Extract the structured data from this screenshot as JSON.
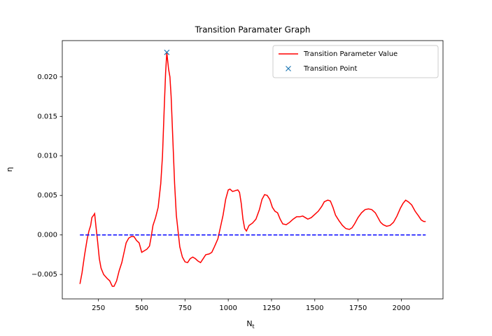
{
  "chart_data": {
    "type": "line",
    "title": "Transition Paramater Graph",
    "xlabel": "N",
    "xlabel_subscript": "t",
    "ylabel": "η",
    "xlim": [
      41,
      2241
    ],
    "ylim": [
      -0.00809,
      0.02459
    ],
    "xticks": [
      250,
      500,
      750,
      1000,
      1250,
      1500,
      1750,
      2000
    ],
    "yticks": [
      {
        "value": -0.005,
        "label": "−0.005"
      },
      {
        "value": 0,
        "label": "0.000"
      },
      {
        "value": 0.005,
        "label": "0.005"
      },
      {
        "value": 0.01,
        "label": "0.010"
      },
      {
        "value": 0.015,
        "label": "0.015"
      },
      {
        "value": 0.02,
        "label": "0.020"
      }
    ],
    "legend_loc": "upper right",
    "series": [
      {
        "name": "Transition Parameter Value",
        "color": "#ff0000",
        "linestyle": "solid",
        "x": [
          143,
          155,
          170,
          185,
          195,
          205,
          212,
          222,
          228,
          235,
          245,
          255,
          265,
          280,
          300,
          315,
          330,
          340,
          355,
          370,
          385,
          400,
          410,
          425,
          440,
          455,
          470,
          485,
          500,
          515,
          530,
          545,
          555,
          565,
          580,
          595,
          610,
          620,
          630,
          638,
          645,
          655,
          663,
          670,
          680,
          690,
          700,
          710,
          720,
          735,
          750,
          765,
          780,
          795,
          810,
          825,
          840,
          855,
          870,
          890,
          905,
          920,
          940,
          955,
          970,
          985,
          1000,
          1010,
          1025,
          1040,
          1055,
          1065,
          1075,
          1085,
          1095,
          1105,
          1120,
          1140,
          1160,
          1180,
          1195,
          1210,
          1225,
          1240,
          1255,
          1270,
          1285,
          1300,
          1315,
          1335,
          1355,
          1375,
          1395,
          1415,
          1430,
          1445,
          1460,
          1480,
          1500,
          1520,
          1540,
          1555,
          1575,
          1590,
          1605,
          1620,
          1640,
          1660,
          1680,
          1700,
          1715,
          1730,
          1750,
          1770,
          1790,
          1810,
          1830,
          1850,
          1865,
          1880,
          1895,
          1915,
          1935,
          1955,
          1975,
          1995,
          2010,
          2025,
          2040,
          2060,
          2080,
          2100,
          2115,
          2130,
          2141
        ],
        "values": [
          -0.0062,
          -0.0048,
          -0.0025,
          -0.0005,
          0.0005,
          0.0012,
          0.0022,
          0.0025,
          0.0027,
          0.0012,
          -0.0008,
          -0.003,
          -0.0042,
          -0.005,
          -0.0055,
          -0.0058,
          -0.0065,
          -0.0065,
          -0.0058,
          -0.0045,
          -0.0035,
          -0.002,
          -0.001,
          -0.0004,
          -0.0002,
          -0.0002,
          -0.0007,
          -0.001,
          -0.0022,
          -0.002,
          -0.0018,
          -0.0014,
          -0.0002,
          0.0012,
          0.0022,
          0.0035,
          0.0065,
          0.01,
          0.016,
          0.0205,
          0.0231,
          0.021,
          0.02,
          0.0175,
          0.012,
          0.0065,
          0.0025,
          0.0005,
          -0.0015,
          -0.0028,
          -0.0034,
          -0.0035,
          -0.003,
          -0.0028,
          -0.003,
          -0.0033,
          -0.0035,
          -0.003,
          -0.0025,
          -0.0024,
          -0.0022,
          -0.0015,
          -0.0005,
          0.001,
          0.0025,
          0.0045,
          0.0057,
          0.0058,
          0.0055,
          0.0056,
          0.0057,
          0.0054,
          0.004,
          0.002,
          0.0008,
          0.0005,
          0.0012,
          0.0015,
          0.002,
          0.0032,
          0.0045,
          0.0051,
          0.005,
          0.0045,
          0.0035,
          0.003,
          0.0028,
          0.002,
          0.0014,
          0.0013,
          0.0016,
          0.002,
          0.0023,
          0.0023,
          0.0024,
          0.0022,
          0.002,
          0.0022,
          0.0026,
          0.003,
          0.0036,
          0.0042,
          0.0044,
          0.0043,
          0.0035,
          0.0025,
          0.0018,
          0.0012,
          0.0008,
          0.0007,
          0.0009,
          0.0014,
          0.0022,
          0.0028,
          0.0032,
          0.0033,
          0.0032,
          0.0028,
          0.0022,
          0.0016,
          0.0013,
          0.0011,
          0.0012,
          0.0016,
          0.0024,
          0.0034,
          0.004,
          0.0044,
          0.0042,
          0.0038,
          0.003,
          0.0024,
          0.0019,
          0.0017,
          0.0017
        ]
      },
      {
        "color": "#0000ff",
        "linestyle": "dashed",
        "x": [
          143,
          2141
        ],
        "values": [
          0,
          0
        ]
      },
      {
        "name": "Transition Point",
        "color": "#1f77b4",
        "marker": "x",
        "x": [
          645
        ],
        "values": [
          0.0231
        ]
      }
    ]
  }
}
